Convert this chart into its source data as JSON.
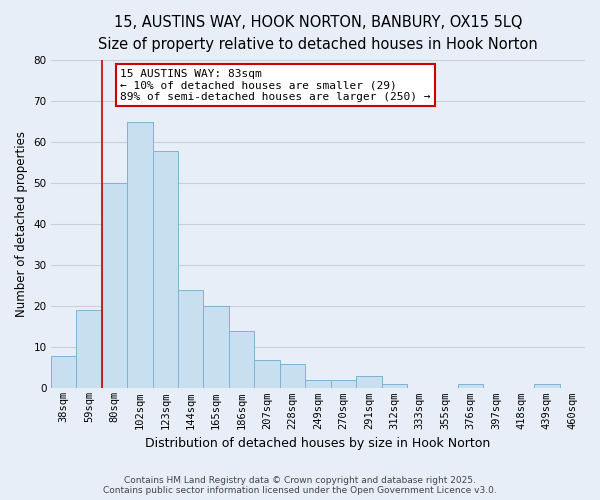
{
  "title": "15, AUSTINS WAY, HOOK NORTON, BANBURY, OX15 5LQ",
  "subtitle": "Size of property relative to detached houses in Hook Norton",
  "xlabel": "Distribution of detached houses by size in Hook Norton",
  "ylabel": "Number of detached properties",
  "bar_labels": [
    "38sqm",
    "59sqm",
    "80sqm",
    "102sqm",
    "123sqm",
    "144sqm",
    "165sqm",
    "186sqm",
    "207sqm",
    "228sqm",
    "249sqm",
    "270sqm",
    "291sqm",
    "312sqm",
    "333sqm",
    "355sqm",
    "376sqm",
    "397sqm",
    "418sqm",
    "439sqm",
    "460sqm"
  ],
  "bar_values": [
    8,
    19,
    50,
    65,
    58,
    24,
    20,
    14,
    7,
    6,
    2,
    2,
    3,
    1,
    0,
    0,
    1,
    0,
    0,
    1,
    0
  ],
  "bar_color": "#c8dff0",
  "bar_edge_color": "#7fb3d3",
  "vline_x_idx": 2,
  "vline_color": "#cc0000",
  "ylim": [
    0,
    80
  ],
  "yticks": [
    0,
    10,
    20,
    30,
    40,
    50,
    60,
    70,
    80
  ],
  "annotation_title": "15 AUSTINS WAY: 83sqm",
  "annotation_line1": "← 10% of detached houses are smaller (29)",
  "annotation_line2": "89% of semi-detached houses are larger (250) →",
  "annotation_box_color": "#ffffff",
  "annotation_box_edge": "#cc0000",
  "footer1": "Contains HM Land Registry data © Crown copyright and database right 2025.",
  "footer2": "Contains public sector information licensed under the Open Government Licence v3.0.",
  "bg_color": "#e8eef8",
  "grid_color": "#c8d0e0",
  "title_fontsize": 10.5,
  "subtitle_fontsize": 9.5,
  "ylabel_fontsize": 8.5,
  "xlabel_fontsize": 9,
  "tick_fontsize": 7.5,
  "annot_fontsize": 8,
  "footer_fontsize": 6.5
}
